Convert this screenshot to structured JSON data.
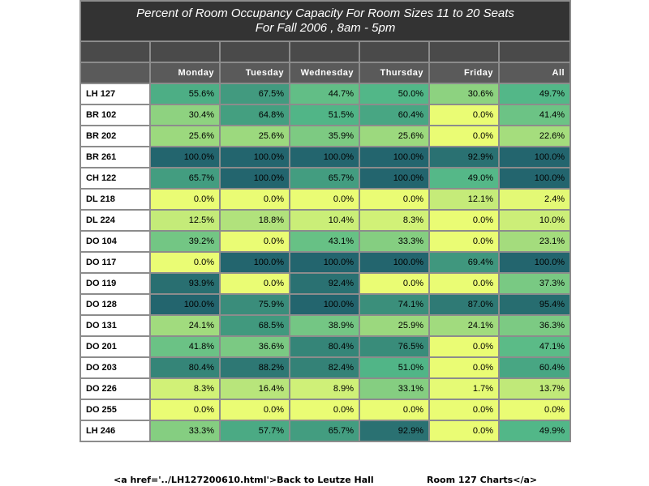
{
  "title": {
    "line1": "Percent of Room Occupancy Capacity For Room Sizes 11 to 20 Seats",
    "line2": "For Fall 2006  , 8am - 5pm"
  },
  "columns": [
    "Monday",
    "Tuesday",
    "Wednesday",
    "Thursday",
    "Friday",
    "All"
  ],
  "rows": [
    {
      "room": "LH 127",
      "values": [
        "55.6%",
        "67.5%",
        "44.7%",
        "50.0%",
        "30.6%",
        "49.7%"
      ]
    },
    {
      "room": "BR 102",
      "values": [
        "30.4%",
        "64.8%",
        "51.5%",
        "60.4%",
        "0.0%",
        "41.4%"
      ]
    },
    {
      "room": "BR 202",
      "values": [
        "25.6%",
        "25.6%",
        "35.9%",
        "25.6%",
        "0.0%",
        "22.6%"
      ]
    },
    {
      "room": "BR 261",
      "values": [
        "100.0%",
        "100.0%",
        "100.0%",
        "100.0%",
        "92.9%",
        "100.0%"
      ]
    },
    {
      "room": "CH 122",
      "values": [
        "65.7%",
        "100.0%",
        "65.7%",
        "100.0%",
        "49.0%",
        "100.0%"
      ]
    },
    {
      "room": "DL 218",
      "values": [
        "0.0%",
        "0.0%",
        "0.0%",
        "0.0%",
        "12.1%",
        "2.4%"
      ]
    },
    {
      "room": "DL 224",
      "values": [
        "12.5%",
        "18.8%",
        "10.4%",
        "8.3%",
        "0.0%",
        "10.0%"
      ]
    },
    {
      "room": "DO 104",
      "values": [
        "39.2%",
        "0.0%",
        "43.1%",
        "33.3%",
        "0.0%",
        "23.1%"
      ]
    },
    {
      "room": "DO 117",
      "values": [
        "0.0%",
        "100.0%",
        "100.0%",
        "100.0%",
        "69.4%",
        "100.0%"
      ]
    },
    {
      "room": "DO 119",
      "values": [
        "93.9%",
        "0.0%",
        "92.4%",
        "0.0%",
        "0.0%",
        "37.3%"
      ]
    },
    {
      "room": "DO 128",
      "values": [
        "100.0%",
        "75.9%",
        "100.0%",
        "74.1%",
        "87.0%",
        "95.4%"
      ]
    },
    {
      "room": "DO 131",
      "values": [
        "24.1%",
        "68.5%",
        "38.9%",
        "25.9%",
        "24.1%",
        "36.3%"
      ]
    },
    {
      "room": "DO 201",
      "values": [
        "41.8%",
        "36.6%",
        "80.4%",
        "76.5%",
        "0.0%",
        "47.1%"
      ]
    },
    {
      "room": "DO 203",
      "values": [
        "80.4%",
        "88.2%",
        "82.4%",
        "51.0%",
        "0.0%",
        "60.4%"
      ]
    },
    {
      "room": "DO 226",
      "values": [
        "8.3%",
        "16.4%",
        "8.9%",
        "33.1%",
        "1.7%",
        "13.7%"
      ]
    },
    {
      "room": "DO 255",
      "values": [
        "0.0%",
        "0.0%",
        "0.0%",
        "0.0%",
        "0.0%",
        "0.0%"
      ]
    },
    {
      "room": "LH 246",
      "values": [
        "33.3%",
        "57.7%",
        "65.7%",
        "92.9%",
        "0.0%",
        "49.9%"
      ]
    }
  ],
  "colors": {
    "scale_low": "#eafc74",
    "scale_mid": "#52b788",
    "scale_high": "#23656e",
    "header_bg": "#333333",
    "grid": "#8c8c8c"
  },
  "footer": {
    "left": "<a href='../LH127200610.html'>Back to Leutze Hall",
    "right": "Room 127 Charts</a>"
  }
}
